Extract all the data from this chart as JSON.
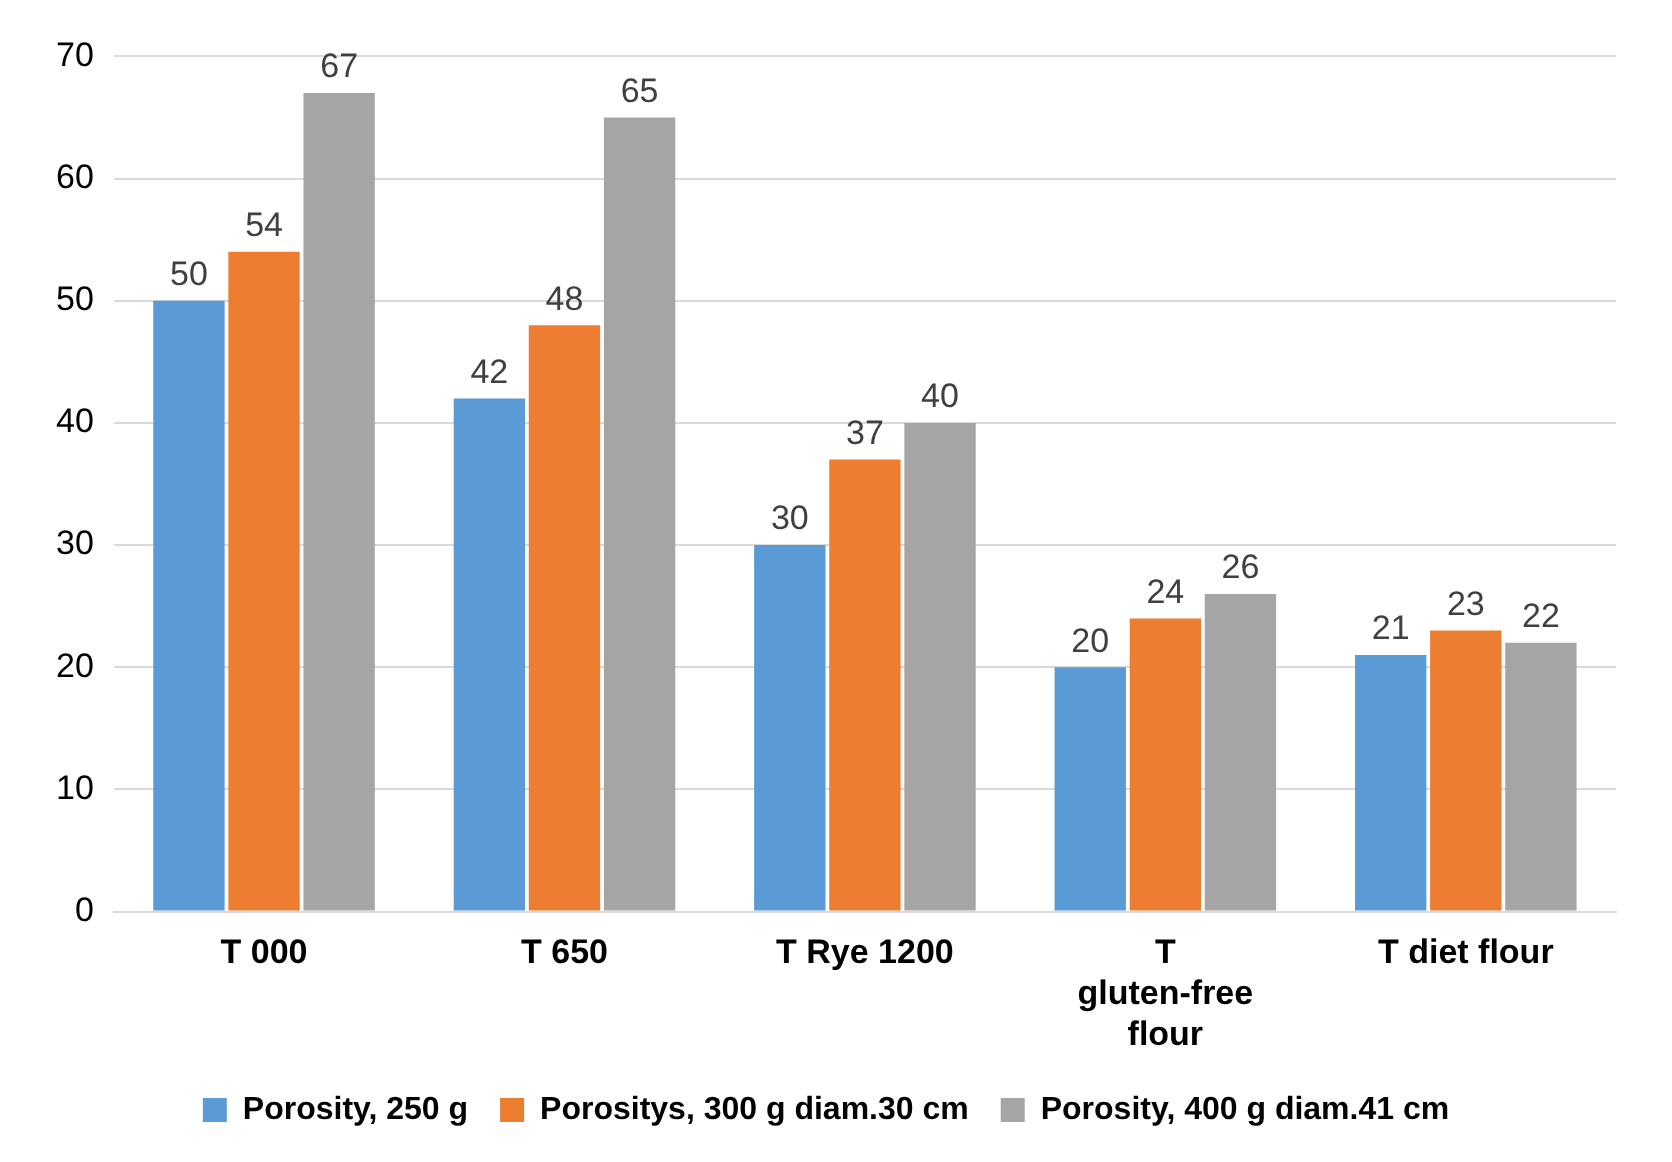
{
  "chart_data": {
    "type": "bar",
    "categories": [
      "T 000",
      "T 650",
      "T Rye 1200",
      "T gluten-free flour",
      "T diet flour"
    ],
    "series": [
      {
        "name": "Porosity, 250 g",
        "color": "#5b9bd5",
        "values": [
          50,
          42,
          30,
          20,
          21
        ]
      },
      {
        "name": "Porositys, 300 g diam.30 cm",
        "color": "#ed7d31",
        "values": [
          54,
          48,
          37,
          24,
          23
        ]
      },
      {
        "name": "Porosity, 400 g diam.41 cm",
        "color": "#a5a5a5",
        "values": [
          67,
          65,
          40,
          26,
          22
        ]
      }
    ],
    "ylim": [
      0,
      70
    ],
    "yticks": [
      0,
      10,
      20,
      30,
      40,
      50,
      60,
      70
    ],
    "grid": "y",
    "legend": "bottom",
    "data_labels": true
  }
}
